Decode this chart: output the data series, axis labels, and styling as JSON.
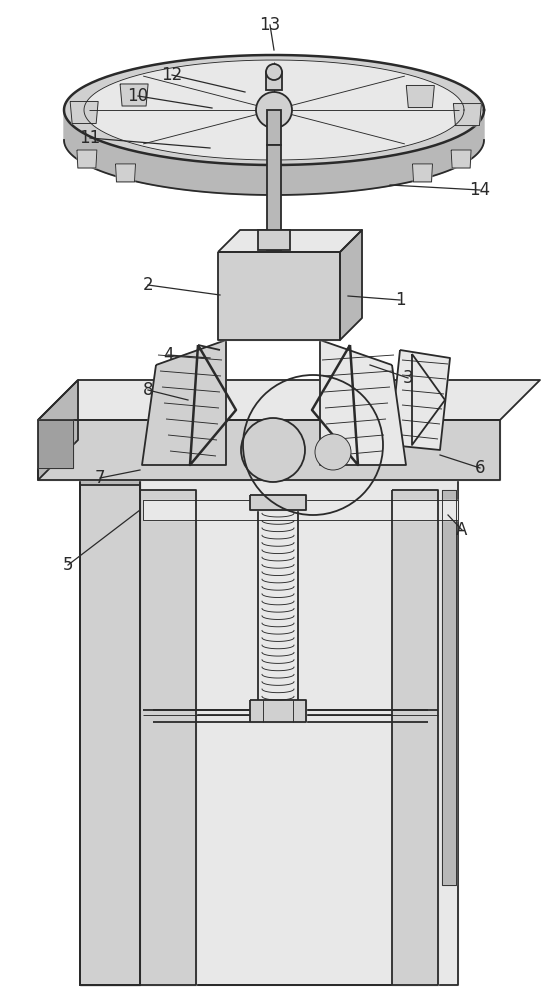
{
  "bg_color": "#ffffff",
  "line_color": "#2a2a2a",
  "figsize": [
    5.49,
    10.0
  ],
  "dpi": 100,
  "label_fontsize": 12,
  "lw_main": 1.3,
  "lw_thin": 0.65,
  "lw_thick": 1.8,
  "fill_light": "#e8e8e8",
  "fill_mid": "#d0d0d0",
  "fill_dark": "#b8b8b8",
  "fill_white": "#f5f5f5",
  "fill_darker": "#a0a0a0"
}
